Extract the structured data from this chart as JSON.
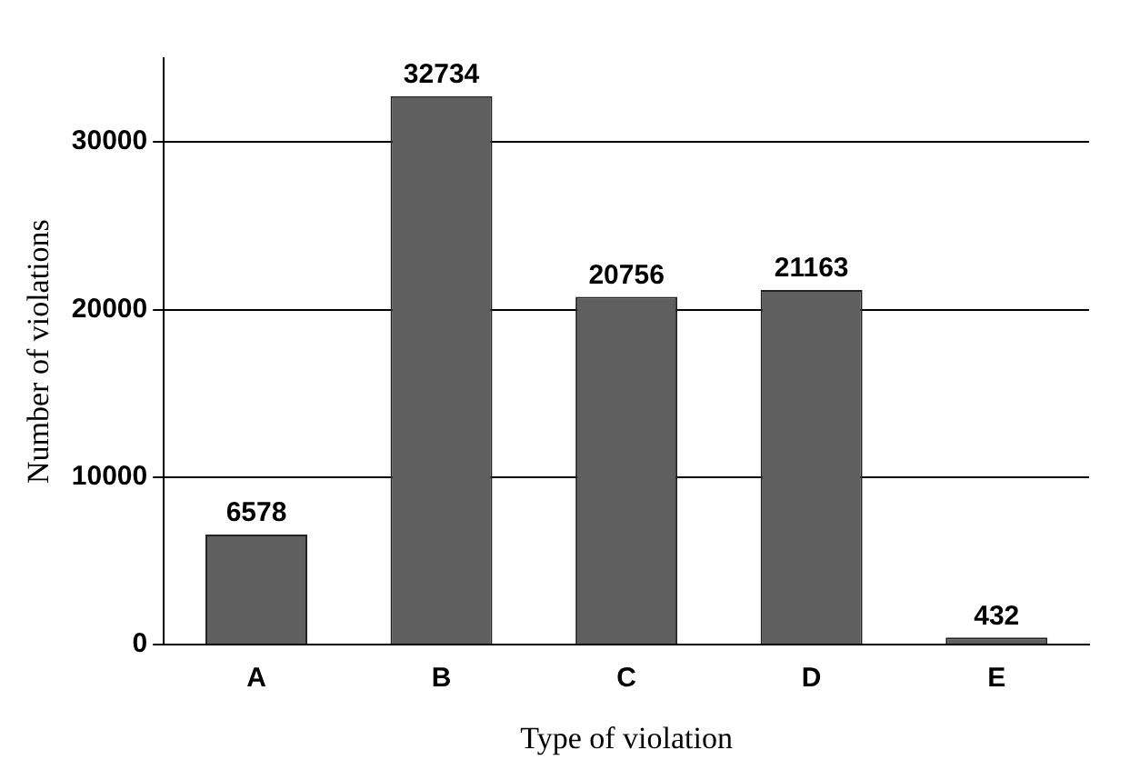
{
  "chart_data": {
    "type": "bar",
    "xlabel": "Type of violation",
    "ylabel": "Number of violations",
    "categories": [
      "A",
      "B",
      "C",
      "D",
      "E"
    ],
    "values": [
      6578,
      32734,
      20756,
      21163,
      432
    ],
    "color": "#5f5f5f",
    "ylim": [
      0,
      35000
    ],
    "yticks": [
      0,
      10000,
      20000,
      30000
    ],
    "grid": "y",
    "data_labels": true
  }
}
